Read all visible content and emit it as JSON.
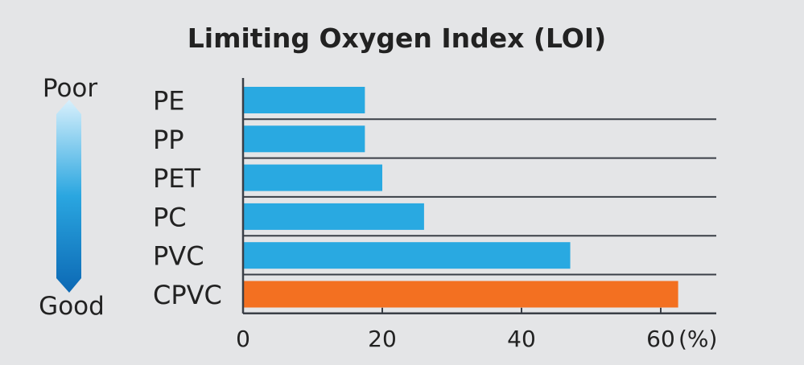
{
  "chart_data": {
    "type": "bar",
    "orientation": "horizontal",
    "title": "Limiting Oxygen Index (LOI)",
    "categories": [
      "PE",
      "PP",
      "PET",
      "PC",
      "PVC",
      "CPVC"
    ],
    "values": [
      17.5,
      17.5,
      20,
      26,
      47,
      62.5
    ],
    "bar_colors": [
      "#29a9e1",
      "#29a9e1",
      "#29a9e1",
      "#29a9e1",
      "#29a9e1",
      "#f37021"
    ],
    "xlim": [
      0,
      68
    ],
    "xticks": [
      0,
      20,
      40,
      60
    ],
    "xunit": "(%)",
    "scale_top_label": "Poor",
    "scale_bottom_label": "Good",
    "grid": false
  }
}
